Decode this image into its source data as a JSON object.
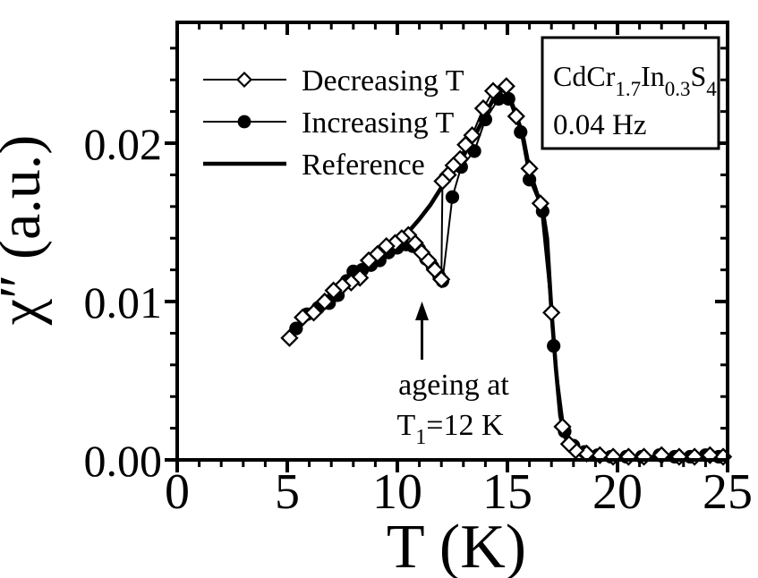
{
  "figure": {
    "background": "#ffffff",
    "ink_color": "#000000",
    "open_marker_fill": "#ffffff"
  },
  "chart_data": {
    "type": "line",
    "title": "",
    "xlabel": "T (K)",
    "ylabel": "χ″ (a.u.)",
    "xlim": [
      0,
      25
    ],
    "ylim": [
      0,
      0.02763
    ],
    "grid": false,
    "legend_position": "top-left-inside",
    "x_major_ticks": [
      {
        "v": 0,
        "label": "0"
      },
      {
        "v": 5,
        "label": "5"
      },
      {
        "v": 10,
        "label": "10"
      },
      {
        "v": 15,
        "label": "15"
      },
      {
        "v": 20,
        "label": "20"
      },
      {
        "v": 25,
        "label": "25"
      }
    ],
    "x_minor_step": 1,
    "y_major_ticks": [
      {
        "v": 0,
        "label": "0.00"
      },
      {
        "v": 0.01,
        "label": "0.01"
      },
      {
        "v": 0.02,
        "label": "0.02"
      }
    ],
    "y_minor_step": 0.002,
    "series": [
      {
        "name": "Decreasing T",
        "marker": "open-diamond",
        "line": "thin",
        "x": [
          24.8,
          24.2,
          23.5,
          22.8,
          22.0,
          21.2,
          20.5,
          19.8,
          19.2,
          18.6,
          18.1,
          17.8,
          17.5,
          17.0,
          16.5,
          16.0,
          15.4,
          14.95,
          14.35,
          13.9,
          13.4,
          13.1,
          12.85,
          12.55,
          12.3,
          12.05,
          12.0,
          11.7,
          11.4,
          11.1,
          10.8,
          10.5,
          10.2,
          9.9,
          9.5,
          9.1,
          8.7,
          8.3,
          7.9,
          7.5,
          7.1,
          6.7,
          6.2,
          5.7,
          5.1
        ],
        "y": [
          0.0002,
          0.0003,
          0.0002,
          0.0002,
          0.0003,
          0.0002,
          0.0002,
          0.0002,
          0.0003,
          0.0004,
          0.0006,
          0.001,
          0.0021,
          0.0093,
          0.0162,
          0.0184,
          0.0217,
          0.0236,
          0.0233,
          0.0222,
          0.0205,
          0.0199,
          0.019,
          0.0186,
          0.018,
          0.0176,
          0.0114,
          0.012,
          0.0126,
          0.0131,
          0.0137,
          0.0142,
          0.014,
          0.0137,
          0.0135,
          0.013,
          0.0126,
          0.0115,
          0.0112,
          0.011,
          0.0107,
          0.01,
          0.0093,
          0.009,
          0.0077
        ]
      },
      {
        "name": "Increasing T",
        "marker": "filled-circle",
        "line": "thin",
        "x": [
          5.4,
          5.9,
          6.4,
          6.9,
          7.3,
          7.7,
          8.0,
          8.4,
          8.8,
          9.2,
          9.6,
          10.0,
          10.4,
          10.7,
          11.0,
          11.3,
          11.6,
          11.9,
          12.05,
          12.5,
          12.9,
          13.5,
          14.0,
          14.6,
          15.05,
          15.6,
          16.0,
          16.6,
          17.1,
          17.6,
          18.0,
          18.5,
          19.1,
          19.7,
          20.4,
          21.1,
          21.9,
          22.6,
          23.3,
          24.0,
          24.6
        ],
        "y": [
          0.0083,
          0.0092,
          0.0096,
          0.0099,
          0.0104,
          0.0113,
          0.0119,
          0.012,
          0.0123,
          0.0126,
          0.0131,
          0.0134,
          0.0136,
          0.0135,
          0.0133,
          0.0127,
          0.0122,
          0.0116,
          0.0113,
          0.0166,
          0.0185,
          0.0195,
          0.0215,
          0.0228,
          0.0228,
          0.0207,
          0.0177,
          0.0157,
          0.0072,
          0.0018,
          0.0009,
          0.0005,
          0.0003,
          0.0002,
          0.0002,
          0.0002,
          0.0003,
          0.0002,
          0.0002,
          0.0003,
          0.0002
        ]
      },
      {
        "name": "Reference",
        "marker": "none",
        "line": "thick",
        "x": [
          5.0,
          5.5,
          6.0,
          6.5,
          7.0,
          7.5,
          8.0,
          8.5,
          9.0,
          9.5,
          10.0,
          10.5,
          11.0,
          11.5,
          12.0,
          12.5,
          13.0,
          13.5,
          14.0,
          14.4,
          14.8,
          15.1,
          15.4,
          15.7,
          16.0,
          16.3,
          16.6,
          16.8,
          17.0,
          17.2,
          17.4,
          17.6,
          17.9,
          18.2,
          18.6,
          19.0,
          19.5,
          20.0,
          21.0,
          22.0,
          23.0,
          24.0,
          25.0
        ],
        "y": [
          0.0075,
          0.0086,
          0.0093,
          0.0099,
          0.0105,
          0.0111,
          0.0117,
          0.0123,
          0.0128,
          0.0134,
          0.0139,
          0.0144,
          0.0152,
          0.0161,
          0.0172,
          0.0182,
          0.0192,
          0.0204,
          0.0218,
          0.0229,
          0.0234,
          0.0229,
          0.0218,
          0.0205,
          0.0183,
          0.017,
          0.0158,
          0.014,
          0.0094,
          0.0058,
          0.0028,
          0.0015,
          0.0008,
          0.0005,
          0.0004,
          0.0003,
          0.0002,
          0.0002,
          0.0001,
          0.0001,
          0.0001,
          0.0001,
          0.0001
        ]
      }
    ],
    "annotations": {
      "sample_box": {
        "formula_plain": "CdCr1.7In0.3S4",
        "formula": [
          {
            "t": "CdCr",
            "sub": false
          },
          {
            "t": "1.7",
            "sub": true
          },
          {
            "t": "In",
            "sub": false
          },
          {
            "t": "0.3",
            "sub": true
          },
          {
            "t": "S",
            "sub": false
          },
          {
            "t": "4",
            "sub": true
          }
        ],
        "frequency": "0.04 Hz"
      },
      "ageing": {
        "line1": "ageing at",
        "line2_plain": "T1=12 K",
        "line2": [
          {
            "t": "T",
            "sub": false
          },
          {
            "t": "1",
            "sub": true
          },
          {
            "t": "=12 K",
            "sub": false
          }
        ],
        "arrow_T": 11.2
      }
    }
  }
}
